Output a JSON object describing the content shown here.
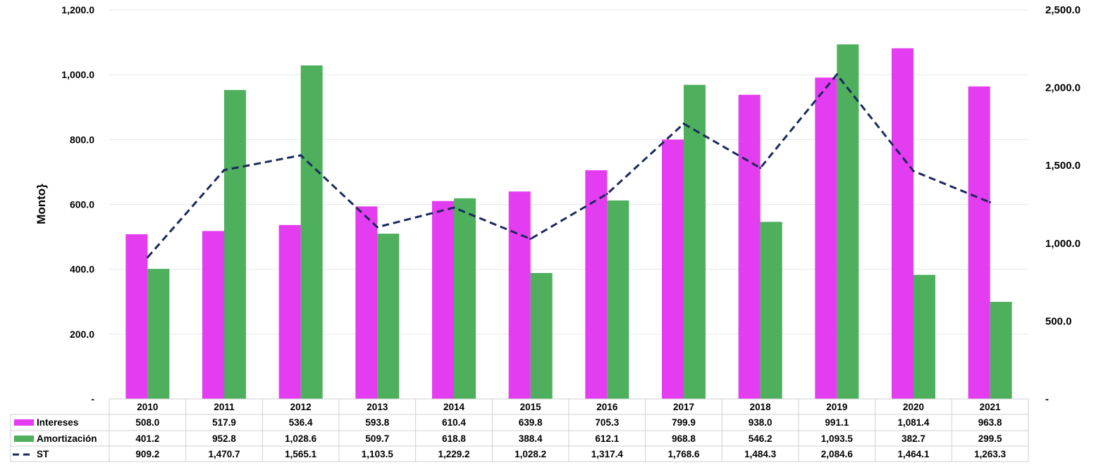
{
  "chart_data": {
    "type": "bar",
    "title": "",
    "xlabel": "",
    "ylabel": "Monto}",
    "ylim": [
      0,
      1200
    ],
    "y2lim": [
      0,
      2500
    ],
    "grid": true,
    "legend_position": "data-table-left",
    "categories": [
      "2010",
      "2011",
      "2012",
      "2013",
      "2014",
      "2015",
      "2016",
      "2017",
      "2018",
      "2019",
      "2020",
      "2021"
    ],
    "y_ticks": [
      "-",
      "200.0",
      "400.0",
      "600.0",
      "800.0",
      "1,000.0",
      "1,200.0"
    ],
    "y2_ticks": [
      "-",
      "500.0",
      "1,000.0",
      "1,500.0",
      "2,000.0",
      "2,500.0"
    ],
    "series": [
      {
        "name": "Intereses",
        "type": "bar",
        "axis": "left",
        "color": "#E43CF0",
        "values": [
          508.0,
          517.9,
          536.4,
          593.8,
          610.4,
          639.8,
          705.3,
          799.9,
          938.0,
          991.1,
          1081.4,
          963.8
        ],
        "labels": [
          "508.0",
          "517.9",
          "536.4",
          "593.8",
          "610.4",
          "639.8",
          "705.3",
          "799.9",
          "938.0",
          "991.1",
          "1,081.4",
          "963.8"
        ]
      },
      {
        "name": "Amortización",
        "type": "bar",
        "axis": "left",
        "color": "#4EAF5C",
        "values": [
          401.2,
          952.8,
          1028.6,
          509.7,
          618.8,
          388.4,
          612.1,
          968.8,
          546.2,
          1093.5,
          382.7,
          299.5
        ],
        "labels": [
          "401.2",
          "952.8",
          "1,028.6",
          "509.7",
          "618.8",
          "388.4",
          "612.1",
          "968.8",
          "546.2",
          "1,093.5",
          "382.7",
          "299.5"
        ]
      },
      {
        "name": "ST",
        "type": "line",
        "style": "dashed",
        "axis": "right",
        "color": "#1B2A5C",
        "values": [
          909.2,
          1470.7,
          1565.1,
          1103.5,
          1229.2,
          1028.2,
          1317.4,
          1768.6,
          1484.3,
          2084.6,
          1464.1,
          1263.3
        ],
        "labels": [
          "909.2",
          "1,470.7",
          "1,565.1",
          "1,103.5",
          "1,229.2",
          "1,028.2",
          "1,317.4",
          "1,768.6",
          "1,484.3",
          "2,084.6",
          "1,464.1",
          "1,263.3"
        ]
      }
    ]
  }
}
